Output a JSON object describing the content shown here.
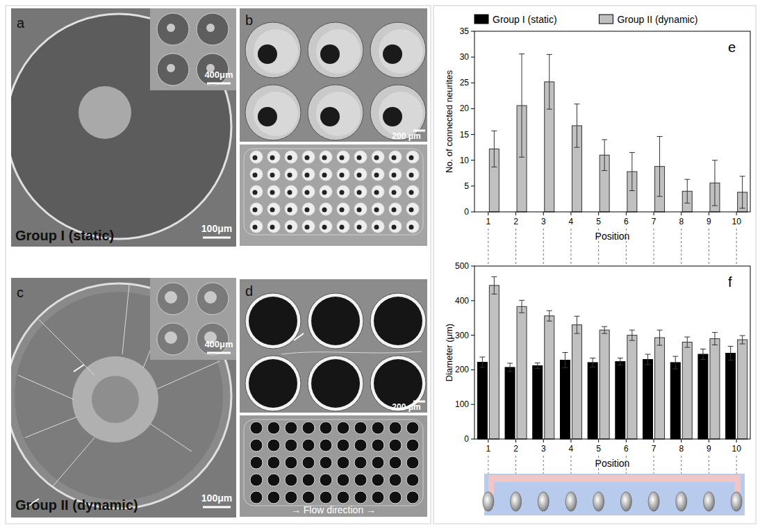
{
  "figure_panels": [
    {
      "label": "a",
      "caption": "Group I (static)",
      "scale_bar": "100μm",
      "inset_scale_bar": "400μm"
    },
    {
      "label": "b",
      "scale_bar": "200 μm"
    },
    {
      "label": "c",
      "caption": "Group II (dynamic)",
      "scale_bar": "100μm",
      "inset_scale_bar": "400μm"
    },
    {
      "label": "d",
      "scale_bar": "200 μm",
      "annotation": "→ Flow direction →"
    }
  ],
  "chart_data": [
    {
      "type": "bar",
      "title": "e",
      "x_label": "Position",
      "y_label": "No. of connected neurites",
      "categories": [
        1,
        2,
        3,
        4,
        5,
        6,
        7,
        8,
        9,
        10
      ],
      "series": [
        {
          "name": "Group I (static)",
          "color": "#000000",
          "values": [
            0,
            0,
            0,
            0,
            0,
            0,
            0,
            0,
            0,
            0
          ]
        },
        {
          "name": "Group II (dynamic)",
          "color": "#c0c0c0",
          "values": [
            12.2,
            20.6,
            25.2,
            16.7,
            11.0,
            7.8,
            8.8,
            4.0,
            5.6,
            3.8
          ],
          "errors": [
            3.5,
            10.0,
            5.3,
            4.2,
            3.0,
            3.7,
            5.8,
            2.3,
            4.4,
            3.1
          ]
        }
      ],
      "ylim": [
        0,
        35
      ],
      "yticks": [
        0,
        5,
        10,
        15,
        20,
        25,
        30,
        35
      ],
      "legend": "top"
    },
    {
      "type": "bar",
      "title": "f",
      "x_label": "Position",
      "y_label": "Diameter (μm)",
      "categories": [
        1,
        2,
        3,
        4,
        5,
        6,
        7,
        8,
        9,
        10
      ],
      "series": [
        {
          "color": "#000000",
          "values": [
            222,
            207,
            212,
            228,
            221,
            224,
            230,
            221,
            245,
            248
          ],
          "errors": [
            15,
            12,
            8,
            22,
            13,
            10,
            15,
            18,
            15,
            20
          ]
        },
        {
          "color": "#c0c0c0",
          "values": [
            444,
            383,
            356,
            330,
            315,
            300,
            293,
            280,
            290,
            287
          ],
          "errors": [
            25,
            18,
            15,
            25,
            10,
            15,
            22,
            15,
            18,
            12
          ]
        }
      ],
      "ylim": [
        0,
        500
      ],
      "yticks": [
        0,
        100,
        200,
        300,
        400,
        500
      ]
    }
  ]
}
